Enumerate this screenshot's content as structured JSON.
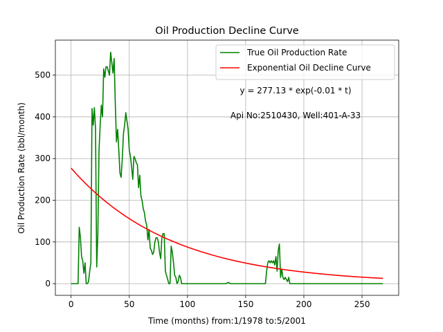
{
  "chart_data": {
    "type": "line",
    "title": "Oil Production Decline Curve",
    "xlabel": "Time (months) from:1/1978 to:5/2001",
    "ylabel": "Oil Production Rate (bbl/month)",
    "xlim": [
      -13.5,
      281.5
    ],
    "ylim": [
      -28,
      584
    ],
    "xticks": [
      0,
      50,
      100,
      150,
      200,
      250
    ],
    "yticks": [
      0,
      100,
      200,
      300,
      400,
      500
    ],
    "grid": true,
    "legend_position": "upper-right",
    "annotations": [
      "y = 277.13 * exp(-0.01 * t)",
      "Api No:2510430, Well:401-A-33"
    ],
    "series": [
      {
        "name": "True Oil Production Rate",
        "color": "#008000",
        "x": [
          0,
          1,
          2,
          3,
          4,
          5,
          6,
          7,
          8,
          9,
          10,
          11,
          12,
          13,
          14,
          15,
          16,
          17,
          18,
          19,
          20,
          21,
          22,
          23,
          24,
          25,
          26,
          27,
          28,
          29,
          30,
          31,
          32,
          33,
          34,
          35,
          36,
          37,
          38,
          39,
          40,
          41,
          42,
          43,
          44,
          45,
          46,
          47,
          48,
          49,
          50,
          51,
          52,
          53,
          54,
          55,
          56,
          57,
          58,
          59,
          60,
          61,
          62,
          63,
          64,
          65,
          66,
          67,
          68,
          69,
          70,
          71,
          72,
          73,
          74,
          75,
          76,
          77,
          78,
          79,
          80,
          81,
          82,
          83,
          84,
          85,
          86,
          87,
          88,
          89,
          90,
          91,
          92,
          93,
          94,
          95,
          96,
          97,
          98,
          99,
          100,
          110,
          120,
          130,
          133,
          135,
          137,
          140,
          150,
          160,
          165,
          166,
          167,
          168,
          169,
          170,
          171,
          172,
          173,
          174,
          175,
          176,
          177,
          178,
          179,
          180,
          181,
          182,
          183,
          184,
          185,
          186,
          187,
          188,
          189,
          190,
          200,
          210,
          220,
          230,
          240,
          250,
          260,
          268
        ],
        "y": [
          0,
          0,
          0,
          0,
          0,
          0,
          0,
          135,
          112,
          65,
          55,
          25,
          50,
          0,
          0,
          5,
          30,
          50,
          420,
          380,
          422,
          370,
          40,
          120,
          320,
          380,
          428,
          400,
          515,
          495,
          520,
          520,
          510,
          500,
          555,
          530,
          505,
          540,
          430,
          340,
          370,
          320,
          265,
          255,
          300,
          360,
          380,
          410,
          390,
          370,
          320,
          305,
          280,
          250,
          305,
          300,
          290,
          285,
          230,
          260,
          210,
          200,
          180,
          170,
          150,
          140,
          105,
          130,
          85,
          80,
          70,
          75,
          100,
          110,
          110,
          100,
          75,
          60,
          110,
          120,
          120,
          30,
          20,
          10,
          0,
          0,
          90,
          75,
          50,
          20,
          15,
          0,
          5,
          20,
          15,
          0,
          0,
          0,
          0,
          0,
          0,
          0,
          0,
          0,
          0,
          3,
          0,
          0,
          0,
          0,
          0,
          0,
          0,
          30,
          50,
          55,
          50,
          55,
          50,
          55,
          45,
          65,
          30,
          80,
          95,
          15,
          35,
          15,
          10,
          15,
          10,
          5,
          15,
          0,
          0,
          0,
          0,
          0,
          0,
          0,
          0,
          0,
          0,
          0
        ]
      },
      {
        "name": "Exponential Oil Decline Curve",
        "color": "#ff0000",
        "equation": {
          "a": 277.13,
          "b": -0.0115
        },
        "x_range": [
          0,
          268
        ],
        "samples": 135
      }
    ]
  }
}
